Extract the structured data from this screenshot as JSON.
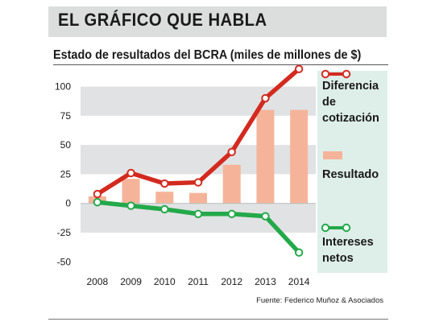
{
  "header": {
    "title": "EL GRÁFICO QUE HABLA"
  },
  "source": "Fuente: Federico Muñoz & Asociados",
  "colors": {
    "red": "#d32a20",
    "green": "#23a94a",
    "bar": "#f5b49a",
    "band": "#e1e2e3",
    "legend_panel": "#deeee9"
  },
  "chart_data": {
    "type": "bar",
    "title": "Estado de resultados del BCRA (miles de millones de $)",
    "categories": [
      "2008",
      "2009",
      "2010",
      "2011",
      "2012",
      "2013",
      "2014"
    ],
    "ylim": [
      -50,
      125
    ],
    "yticks": [
      100,
      75,
      50,
      25,
      0,
      -25,
      -50
    ],
    "legend_position": "right",
    "series": [
      {
        "name": "Resultado",
        "kind": "bar",
        "values": [
          6,
          21,
          10,
          9,
          33,
          80,
          80
        ]
      },
      {
        "name": "Diferencia de cotización",
        "kind": "line",
        "values": [
          8,
          26,
          17,
          18,
          44,
          90,
          115
        ]
      },
      {
        "name": "Intereses netos",
        "kind": "line",
        "values": [
          1,
          -2,
          -5,
          -9,
          -9,
          -11,
          -42
        ]
      }
    ]
  }
}
